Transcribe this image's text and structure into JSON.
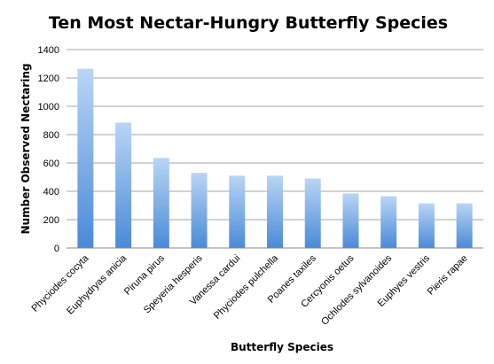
{
  "chart_data": {
    "type": "bar",
    "title": "Ten Most Nectar-Hungry Butterfly Species",
    "xlabel": "Butterfly Species",
    "ylabel": "Number Observed Nectaring",
    "categories": [
      "Phyciodes cocyta",
      "Euphydryas anicia",
      "Piruna pirus",
      "Speyeria hesperis",
      "Vanessa cardui",
      "Phyciodes pulchella",
      "Poanes taxiles",
      "Cercyonis oetus",
      "Ochlodes sylvanoides",
      "Euphyes vestris",
      "Pieris rapae"
    ],
    "values": [
      1265,
      885,
      635,
      530,
      510,
      510,
      490,
      385,
      365,
      315,
      315
    ],
    "ylim": [
      0,
      1400
    ],
    "yticks": [
      0,
      200,
      400,
      600,
      800,
      1000,
      1200,
      1400
    ],
    "grid": true,
    "legend": "none",
    "colors": {
      "bar_top": "#b9d5f5",
      "bar_bottom": "#4a8ad8",
      "grid": "#a6a6a6",
      "axis": "#888888"
    }
  }
}
